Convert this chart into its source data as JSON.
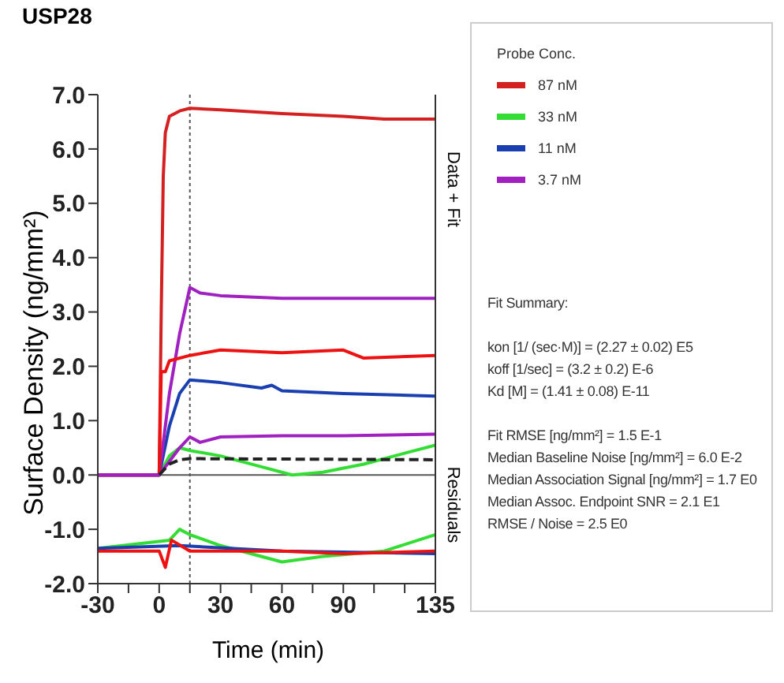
{
  "chart_data": {
    "type": "line",
    "title": "USP28",
    "xlabel": "Time (min)",
    "ylabel": "Surface Density (ng/mm²)",
    "legend_title": "Probe Conc.",
    "legend": "right",
    "marker": "none",
    "xlim": [
      -30,
      135
    ],
    "xticks": [
      -30,
      {
        "value": -15,
        "label": null
      },
      0,
      {
        "value": 15,
        "label": null
      },
      30,
      {
        "value": 45,
        "label": null
      },
      60,
      {
        "value": 75,
        "label": null
      },
      90,
      {
        "value": 105,
        "label": null
      },
      {
        "value": 120,
        "label": null
      },
      135
    ],
    "ylim": [
      -2,
      7
    ],
    "yticks": [
      {
        "value": -2,
        "label": "-2.0"
      },
      {
        "value": -1,
        "label": "-1.0"
      },
      {
        "value": 0,
        "label": "0.0"
      },
      {
        "value": 1,
        "label": "1.0"
      },
      {
        "value": 2,
        "label": "2.0"
      },
      {
        "value": 3,
        "label": "3.0"
      },
      {
        "value": 4,
        "label": "4.0"
      },
      {
        "value": 5,
        "label": "5.0"
      },
      {
        "value": 6,
        "label": "6.0"
      },
      {
        "value": 7,
        "label": "7.0"
      }
    ],
    "ref_lines": [
      {
        "axis": "x",
        "value": 15,
        "line_style": "dotted",
        "color": "#555555"
      },
      {
        "axis": "y",
        "value": 0,
        "line_style": "solid",
        "color": "#555555"
      }
    ],
    "series": [
      {
        "name": "87 nM",
        "color": "#d42020",
        "x": [
          -30,
          -15,
          0,
          1,
          2,
          3,
          5,
          10,
          15,
          30,
          60,
          90,
          110,
          135
        ],
        "values": [
          0,
          0,
          0,
          3,
          5.5,
          6.3,
          6.6,
          6.7,
          6.75,
          6.72,
          6.65,
          6.6,
          6.55,
          6.55
        ]
      },
      {
        "name": "33 nM",
        "color": "#33dd33",
        "x": [
          -30,
          0,
          5,
          10,
          15,
          30,
          50,
          65,
          80,
          100,
          120,
          135
        ],
        "values": [
          0,
          0,
          0.35,
          0.5,
          0.45,
          0.35,
          0.15,
          0,
          0.05,
          0.2,
          0.4,
          0.55
        ]
      },
      {
        "name": "11 nM",
        "color": "#1a3fb0",
        "x": [
          -30,
          0,
          5,
          10,
          15,
          30,
          50,
          55,
          60,
          90,
          135
        ],
        "values": [
          0,
          0,
          0.9,
          1.5,
          1.75,
          1.7,
          1.6,
          1.65,
          1.55,
          1.5,
          1.45
        ]
      },
      {
        "name": "3.7 nM",
        "color": "#a020c0",
        "x": [
          -30,
          0,
          5,
          10,
          15,
          20,
          30,
          60,
          90,
          135
        ],
        "values": [
          0,
          0,
          1.5,
          2.6,
          3.45,
          3.35,
          3.3,
          3.25,
          3.25,
          3.25
        ]
      },
      {
        "color": "#ee1111",
        "x": [
          -30,
          0,
          1,
          3,
          5,
          15,
          30,
          60,
          90,
          100,
          135
        ],
        "values": [
          0,
          0,
          1.9,
          1.9,
          2.1,
          2.2,
          2.3,
          2.25,
          2.3,
          2.15,
          2.2
        ]
      },
      {
        "color": "#a020c0",
        "x": [
          -30,
          0,
          10,
          15,
          20,
          30,
          60,
          90,
          135
        ],
        "values": [
          0,
          0,
          0.5,
          0.7,
          0.6,
          0.7,
          0.72,
          0.72,
          0.75
        ]
      },
      {
        "color": "#222222",
        "line_style": "dashed",
        "x": [
          0,
          5,
          10,
          15,
          135
        ],
        "values": [
          0,
          0.2,
          0.28,
          0.3,
          0.28
        ]
      },
      {
        "color": "#33dd33",
        "x": [
          -30,
          5,
          10,
          15,
          30,
          60,
          80,
          110,
          135
        ],
        "values": [
          -1.35,
          -1.2,
          -1,
          -1.1,
          -1.3,
          -1.6,
          -1.5,
          -1.4,
          -1.1
        ]
      },
      {
        "color": "#1a3fb0",
        "x": [
          -30,
          10,
          60,
          135
        ],
        "values": [
          -1.35,
          -1.3,
          -1.4,
          -1.45
        ]
      },
      {
        "color": "#ee1111",
        "x": [
          -30,
          0,
          3,
          6,
          15,
          60,
          90,
          135
        ],
        "values": [
          -1.4,
          -1.4,
          -1.7,
          -1.2,
          -1.4,
          -1.4,
          -1.45,
          -1.4
        ]
      }
    ],
    "annotations": [
      "Data + Fit",
      "Residuals",
      "Fit Summary:",
      "kon  [1/ (sec·M)]  =  (2.27 ± 0.02) E5",
      "koff  [1/sec]  =  (3.2 ± 0.2) E-6",
      "Kd  [M]  =  (1.41 ± 0.08) E-11",
      "Fit RMSE [ng/mm²]  =  1.5 E-1",
      "Median Baseline Noise [ng/mm²]  =  6.0 E-2",
      "Median Association Signal [ng/mm²]  =  1.7 E0",
      "Median Assoc. Endpoint SNR  =  2.1 E1",
      "RMSE / Noise  =  2.5 E0"
    ]
  }
}
